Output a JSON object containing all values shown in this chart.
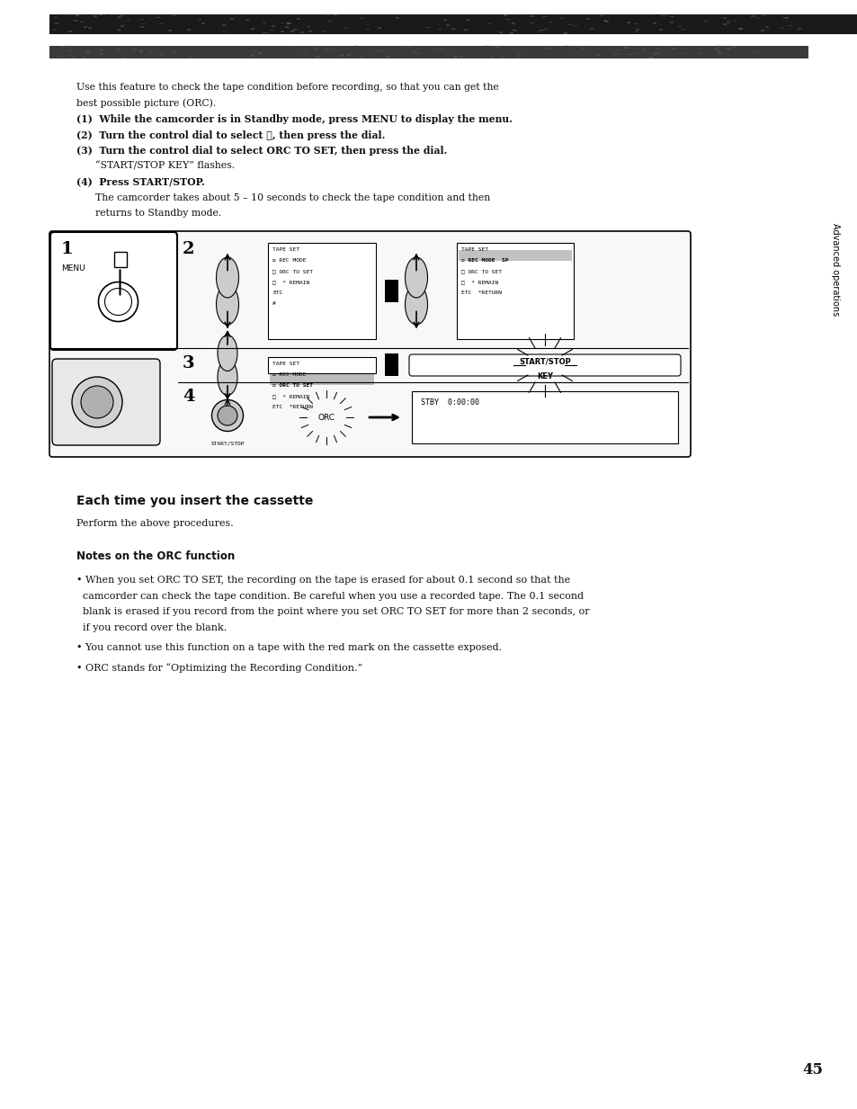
{
  "bg_color": "#ffffff",
  "page_width": 9.54,
  "page_height": 12.33,
  "top_bar1_color": "#1a1a1a",
  "top_bar2_color": "#2a2a2a",
  "header_text_lines": [
    "Use this feature to check the tape condition before recording, so that you can get the",
    "best possible picture (ORC).",
    "(1)  While the camcorder is in Standby mode, press MENU to display the menu.",
    "(2)  Turn the control dial to select Ⓣ, then press the dial.",
    "(3)  Turn the control dial to select ORC TO SET, then press the dial.",
    "      “START/STOP KEY” flashes.",
    "(4)  Press START/STOP.",
    "      The camcorder takes about 5 – 10 seconds to check the tape condition and then",
    "      returns to Standby mode."
  ],
  "section_title": "Each time you insert the cassette",
  "section_sub": "Perform the above procedures.",
  "notes_title": "Notes on the ORC function",
  "notes_bullets": [
    "When you set ORC TO SET, the recording on the tape is erased for about 0.1 second so that the camcorder can check the tape condition. Be careful when you use a recorded tape. The 0.1 second blank is erased if you record from the point where you set ORC TO SET for more than 2 seconds, or if you record over the blank.",
    "You cannot use this function on a tape with the red mark on the cassette exposed.",
    "ORC stands for “Optimizing the Recording Condition.”"
  ],
  "page_number": "45",
  "sidebar_text": "Advanced operations",
  "diagram_box_color": "#000000",
  "diagram_bg": "#ffffff"
}
